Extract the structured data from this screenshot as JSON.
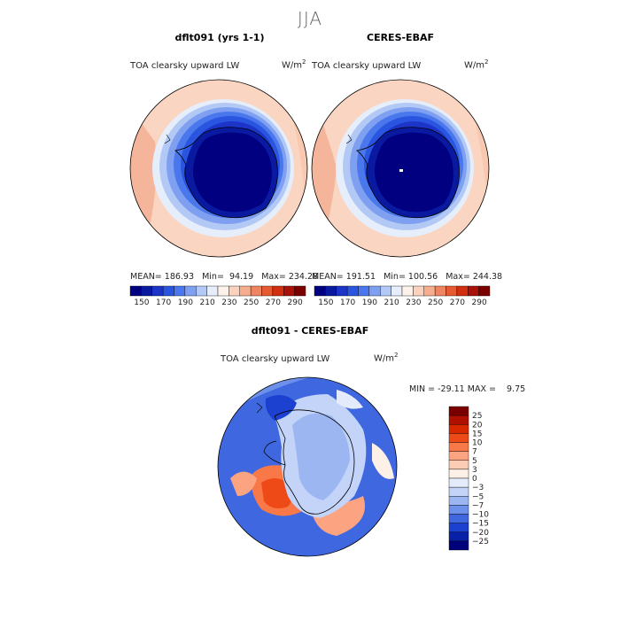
{
  "season": "JJA",
  "panels": [
    {
      "title": "dflt091 (yrs 1-1)",
      "variable": "TOA clearsky upward LW",
      "units": "W/m",
      "units_sup": "2",
      "stats": "MEAN= 186.93   Min=  94.19   Max= 234.28"
    },
    {
      "title": "CERES-EBAF",
      "variable": "TOA clearsky upward LW",
      "units": "W/m",
      "units_sup": "2",
      "stats": "MEAN= 191.51   Min= 100.56   Max= 244.38"
    }
  ],
  "diff": {
    "title": "dflt091 - CERES-EBAF",
    "variable": "TOA clearsky upward LW",
    "units": "W/m",
    "units_sup": "2",
    "stats": "MIN = -29.11 MAX =    9.75"
  },
  "chart_data": [
    {
      "type": "heatmap",
      "title": "dflt091 (yrs 1-1)",
      "subtitle": "TOA clearsky upward LW",
      "units": "W/m2",
      "stats": {
        "mean": 186.93,
        "min": 94.19,
        "max": 234.28
      },
      "colorbar": {
        "ticks": [
          "150",
          "170",
          "190",
          "210",
          "230",
          "250",
          "270",
          "290"
        ],
        "colors": [
          "#000080",
          "#0a1aa0",
          "#1c35c8",
          "#2a55e0",
          "#4a78ec",
          "#7fa0f0",
          "#b2c8f5",
          "#e6eefb",
          "#fdf2ea",
          "#fad2bd",
          "#f5ad8e",
          "#ef8460",
          "#e65a30",
          "#d22e12",
          "#a81208",
          "#7a0000"
        ]
      }
    },
    {
      "type": "heatmap",
      "title": "CERES-EBAF",
      "subtitle": "TOA clearsky upward LW",
      "units": "W/m2",
      "stats": {
        "mean": 191.51,
        "min": 100.56,
        "max": 244.38
      },
      "colorbar": {
        "ticks": [
          "150",
          "170",
          "190",
          "210",
          "230",
          "250",
          "270",
          "290"
        ],
        "colors": [
          "#000080",
          "#0a1aa0",
          "#1c35c8",
          "#2a55e0",
          "#4a78ec",
          "#7fa0f0",
          "#b2c8f5",
          "#e6eefb",
          "#fdf2ea",
          "#fad2bd",
          "#f5ad8e",
          "#ef8460",
          "#e65a30",
          "#d22e12",
          "#a81208",
          "#7a0000"
        ]
      }
    },
    {
      "type": "heatmap",
      "title": "dflt091 - CERES-EBAF",
      "subtitle": "TOA clearsky upward LW",
      "units": "W/m2",
      "stats": {
        "min": -29.11,
        "max": 9.75
      },
      "colorbar": {
        "ticks": [
          "25",
          "20",
          "15",
          "10",
          "7",
          "5",
          "3",
          "0",
          "−3",
          "−5",
          "−7",
          "−10",
          "−15",
          "−20",
          "−25"
        ],
        "colors": [
          "#7a0000",
          "#b01000",
          "#d82800",
          "#ee4a18",
          "#f87848",
          "#fca482",
          "#fdccb4",
          "#fdf0e6",
          "#e4ecfc",
          "#c3d4f8",
          "#9cb6f2",
          "#6d90ea",
          "#3f68e0",
          "#1c40d0",
          "#0820a8",
          "#00007a"
        ]
      }
    }
  ]
}
